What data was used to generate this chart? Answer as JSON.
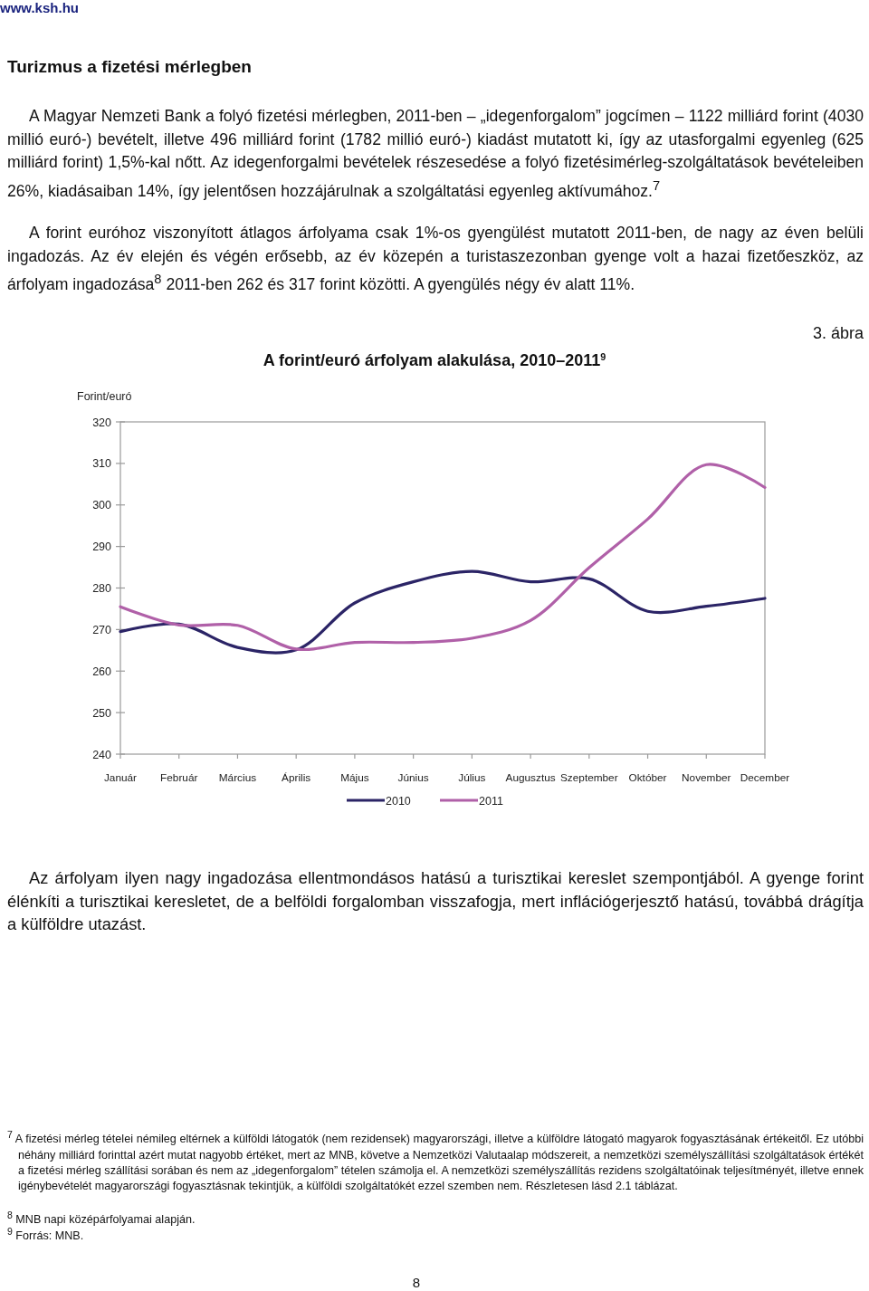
{
  "chart_data": {
    "type": "line",
    "title": "A forint/euró árfolyam alakulása, 2010–2011$^{9}$",
    "ylabel": "Forint/euró",
    "annotations": [
      "www.ksh.hu",
      "Turizmus a fizetési mérlegben",
      "A Magyar Nemzeti Bank a folyó fizetési mérlegben, 2011-ben – „idegenforgalom” jogcímen – 1122 milliárd forint (4030 millió euró-) bevételt, illetve 496 milliárd forint (1782 millió euró-) kiadást mutatott ki, így az utasforgalmi egyenleg (625 milliárd forint) 1,5%-kal nőtt. Az idegenforgalmi bevételek részesedése a folyó fizetésimérleg-szolgáltatások bevételeiben 26%, kiadásaiban 14%, így jelentősen hozzájárulnak a szolgáltatási egyenleg aktívumához.$^{7}$",
      "A forint euróhoz viszonyított átlagos árfolyama csak 1%-os gyengülést mutatott 2011-ben, de nagy az éven belüli ingadozás. Az év elején és végén erősebb, az év közepén a turistaszezonban gyenge volt a hazai fizetőeszköz, az árfolyam ingadozása$^{8}$ 2011-ben 262 és 317 forint közötti. A gyengülés négy év alatt 11%.",
      "3. ábra",
      "Az árfolyam ilyen nagy ingadozása ellentmondásos hatású a turisztikai kereslet szempontjából. A gyenge forint élénkíti a turisztikai keresletet, de a belföldi forgalomban visszafogja, mert inflációgerjesztő hatású, továbbá drágítja a külföldre utazást.",
      "$^{7}$ A fizetési mérleg tételei némileg eltérnek a külföldi látogatók (nem rezidensek) magyarországi, illetve a külföldre látogató magyarok fogyasztásának értékeitől. Ez utóbbi néhány milliárd forinttal azért mutat nagyobb értéket, mert az MNB, követve a Nemzetközi Valutaalap módszereit, a nemzetközi személyszállítási szolgáltatások értékét a fizetési mérleg szállítási sorában és nem az „idegenforgalom” tételen számolja el. A nemzetközi személyszállítás rezidens szolgáltatóinak teljesítményét, illetve ennek igénybevételét magyarországi fogyasztásnak tekintjük, a külföldi szolgáltatókét ezzel szemben nem. Részletesen lásd 2.1 táblázat.",
      "$^{8}$ MNB napi középárfolyamai alapján.",
      "$^{9}$ Forrás: MNB.",
      "8"
    ],
    "categories": [
      "Január",
      "Február",
      "Március",
      "Április",
      "Május",
      "Június",
      "Július",
      "Augusztus",
      "Szeptember",
      "Október",
      "November",
      "December"
    ],
    "ylim": [
      240,
      320
    ],
    "yticks": [
      240,
      250,
      260,
      270,
      280,
      290,
      300,
      310,
      320
    ],
    "grid": false,
    "legend": "bottom",
    "series": [
      {
        "name": "2010",
        "color": "#2b2466",
        "values": [
          269.5,
          271.3,
          265.7,
          265.1,
          276.4,
          281.5,
          284,
          281.5,
          282.2,
          274.4,
          275.6,
          277.5
        ]
      },
      {
        "name": "2011",
        "color": "#b060a8",
        "values": [
          275.5,
          271.1,
          271,
          265.3,
          266.9,
          266.9,
          267.9,
          272.2,
          284.9,
          296.6,
          309.7,
          304.2
        ]
      }
    ]
  }
}
